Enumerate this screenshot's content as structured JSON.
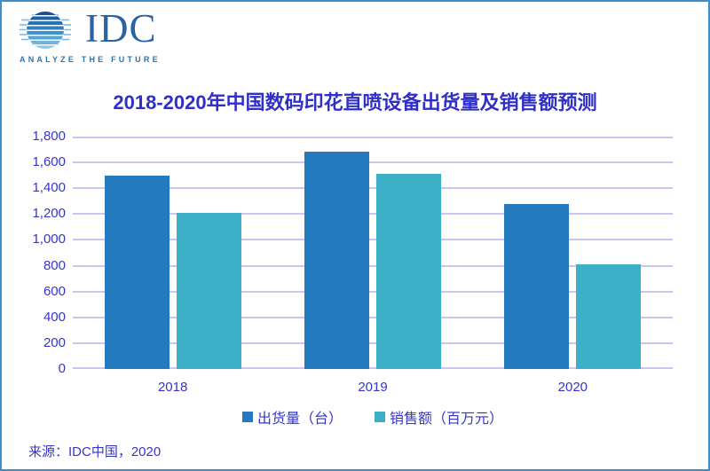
{
  "logo": {
    "text": "IDC",
    "tagline": "ANALYZE THE FUTURE"
  },
  "title": "2018-2020年中国数码印花直喷设备出货量及销售额预测",
  "source": "来源：IDC中国，2020",
  "colors": {
    "border": "#3E8CCB",
    "title_text": "#3030C8",
    "axis_text": "#3535C8",
    "gridline": "#C9C7F1"
  },
  "chart_data": {
    "type": "bar",
    "title": "2018-2020年中国数码印花直喷设备出货量及销售额预测",
    "categories": [
      "2018",
      "2019",
      "2020"
    ],
    "series": [
      {
        "name": "出货量（台）",
        "color": "#2579BE",
        "values": [
          1500,
          1680,
          1275
        ]
      },
      {
        "name": "销售额（百万元）",
        "color": "#3AAFC5",
        "values": [
          1210,
          1510,
          810
        ]
      }
    ],
    "xlabel": "",
    "ylabel": "",
    "ylim": [
      0,
      1800
    ],
    "ytick_step": 200,
    "grid": true,
    "legend_position": "bottom"
  }
}
